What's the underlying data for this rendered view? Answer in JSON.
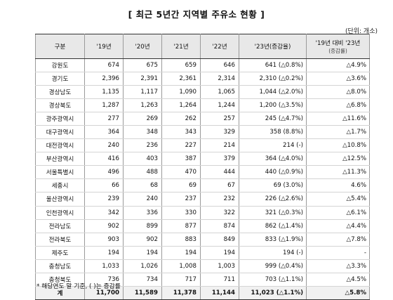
{
  "title": "[ 최근 5년간 지역별 주유소 현황 ]",
  "unit": "(단위: 개소)",
  "headers": {
    "region": "구분",
    "y19": "'19년",
    "y20": "'20년",
    "y21": "'21년",
    "y22": "'22년",
    "y23": "'23년",
    "y23_sub": "(증감율)",
    "change": "'19년 대비 '23년",
    "change_sub": "(증감률)"
  },
  "rows": [
    {
      "region": "강원도",
      "y19": "674",
      "y20": "675",
      "y21": "659",
      "y22": "646",
      "y23": "641 (△0.8%)",
      "change": "△4.9%"
    },
    {
      "region": "경기도",
      "y19": "2,396",
      "y20": "2,391",
      "y21": "2,361",
      "y22": "2,314",
      "y23": "2,310 (△0.2%)",
      "change": "△3.6%"
    },
    {
      "region": "경상남도",
      "y19": "1,135",
      "y20": "1,117",
      "y21": "1,090",
      "y22": "1,065",
      "y23": "1,044 (△2.0%)",
      "change": "△8.0%"
    },
    {
      "region": "경상북도",
      "y19": "1,287",
      "y20": "1,263",
      "y21": "1,264",
      "y22": "1,244",
      "y23": "1,200 (△3.5%)",
      "change": "△6.8%"
    },
    {
      "region": "광주광역시",
      "y19": "277",
      "y20": "269",
      "y21": "262",
      "y22": "257",
      "y23": "245 (△4.7%)",
      "change": "△11.6%"
    },
    {
      "region": "대구광역시",
      "y19": "364",
      "y20": "348",
      "y21": "343",
      "y22": "329",
      "y23": "358 (8.8%)",
      "change": "△1.7%"
    },
    {
      "region": "대전광역시",
      "y19": "240",
      "y20": "236",
      "y21": "227",
      "y22": "214",
      "y23": "214 (-)",
      "change": "△10.8%"
    },
    {
      "region": "부산광역시",
      "y19": "416",
      "y20": "403",
      "y21": "387",
      "y22": "379",
      "y23": "364 (△4.0%)",
      "change": "△12.5%"
    },
    {
      "region": "서울특별시",
      "y19": "496",
      "y20": "488",
      "y21": "470",
      "y22": "444",
      "y23": "440 (△0.9%)",
      "change": "△11.3%"
    },
    {
      "region": "세종시",
      "y19": "66",
      "y20": "68",
      "y21": "69",
      "y22": "67",
      "y23": "69 (3.0%)",
      "change": "4.6%"
    },
    {
      "region": "울산광역시",
      "y19": "239",
      "y20": "240",
      "y21": "237",
      "y22": "232",
      "y23": "226 (△2.6%)",
      "change": "△5.4%"
    },
    {
      "region": "인천광역시",
      "y19": "342",
      "y20": "336",
      "y21": "330",
      "y22": "322",
      "y23": "321 (△0.3%)",
      "change": "△6.1%"
    },
    {
      "region": "전라남도",
      "y19": "902",
      "y20": "899",
      "y21": "877",
      "y22": "874",
      "y23": "862 (△1.4%)",
      "change": "△4.4%"
    },
    {
      "region": "전라북도",
      "y19": "903",
      "y20": "902",
      "y21": "883",
      "y22": "849",
      "y23": "833 (△1.9%)",
      "change": "△7.8%"
    },
    {
      "region": "제주도",
      "y19": "194",
      "y20": "194",
      "y21": "194",
      "y22": "194",
      "y23": "194 (-)",
      "change": "-"
    },
    {
      "region": "충청남도",
      "y19": "1,033",
      "y20": "1,026",
      "y21": "1,008",
      "y22": "1,003",
      "y23": "999 (△0.4%)",
      "change": "△3.3%"
    },
    {
      "region": "충청북도",
      "y19": "736",
      "y20": "734",
      "y21": "717",
      "y22": "711",
      "y23": "703 (△1.1%)",
      "change": "△4.5%"
    }
  ],
  "total": {
    "region": "계",
    "y19": "11,700",
    "y20": "11,589",
    "y21": "11,378",
    "y22": "11,144",
    "y23": "11,023 (△1.1%)",
    "change": "△5.8%"
  },
  "note": "* 해당연도 말 기준, (  )는 증감률"
}
